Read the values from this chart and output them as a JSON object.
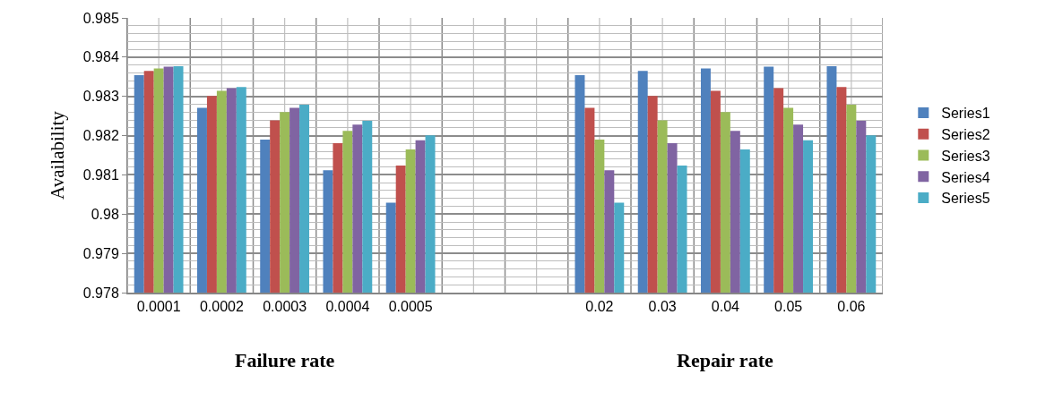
{
  "chart_data": {
    "type": "bar",
    "ylabel": "Availability",
    "annotations": [
      "Failure rate",
      "Repair rate"
    ],
    "categories": [
      "0.0001",
      "0.0002",
      "0.0003",
      "0.0004",
      "0.0005",
      null,
      null,
      "0.02",
      "0.03",
      "0.04",
      "0.05",
      "0.06"
    ],
    "series": [
      {
        "name": "Series1",
        "color": "#4f81bd",
        "values": [
          0.98354,
          0.98271,
          0.9819,
          0.98112,
          0.98029,
          null,
          null,
          0.98354,
          0.98365,
          0.98371,
          0.98376,
          0.98377
        ]
      },
      {
        "name": "Series2",
        "color": "#c0504d",
        "values": [
          0.98365,
          0.98301,
          0.98239,
          0.98181,
          0.98124,
          null,
          null,
          0.98271,
          0.98301,
          0.98314,
          0.98321,
          0.98324
        ]
      },
      {
        "name": "Series3",
        "color": "#9bbb59",
        "values": [
          0.98371,
          0.98314,
          0.9826,
          0.98212,
          0.98165,
          null,
          null,
          0.9819,
          0.98239,
          0.9826,
          0.98271,
          0.98279
        ]
      },
      {
        "name": "Series4",
        "color": "#8064a2",
        "values": [
          0.98376,
          0.98321,
          0.98271,
          0.98228,
          0.98188,
          null,
          null,
          0.98112,
          0.98181,
          0.98212,
          0.98228,
          0.98238
        ]
      },
      {
        "name": "Series5",
        "color": "#4bacc6",
        "values": [
          0.98377,
          0.98324,
          0.98279,
          0.98238,
          0.98201,
          null,
          null,
          0.98029,
          0.98124,
          0.98165,
          0.98188,
          0.98201
        ]
      }
    ],
    "ylim": [
      0.978,
      0.985
    ],
    "yticks": [
      0.978,
      0.979,
      0.98,
      0.981,
      0.982,
      0.983,
      0.984,
      0.985
    ],
    "grid": true,
    "legend": "right"
  }
}
